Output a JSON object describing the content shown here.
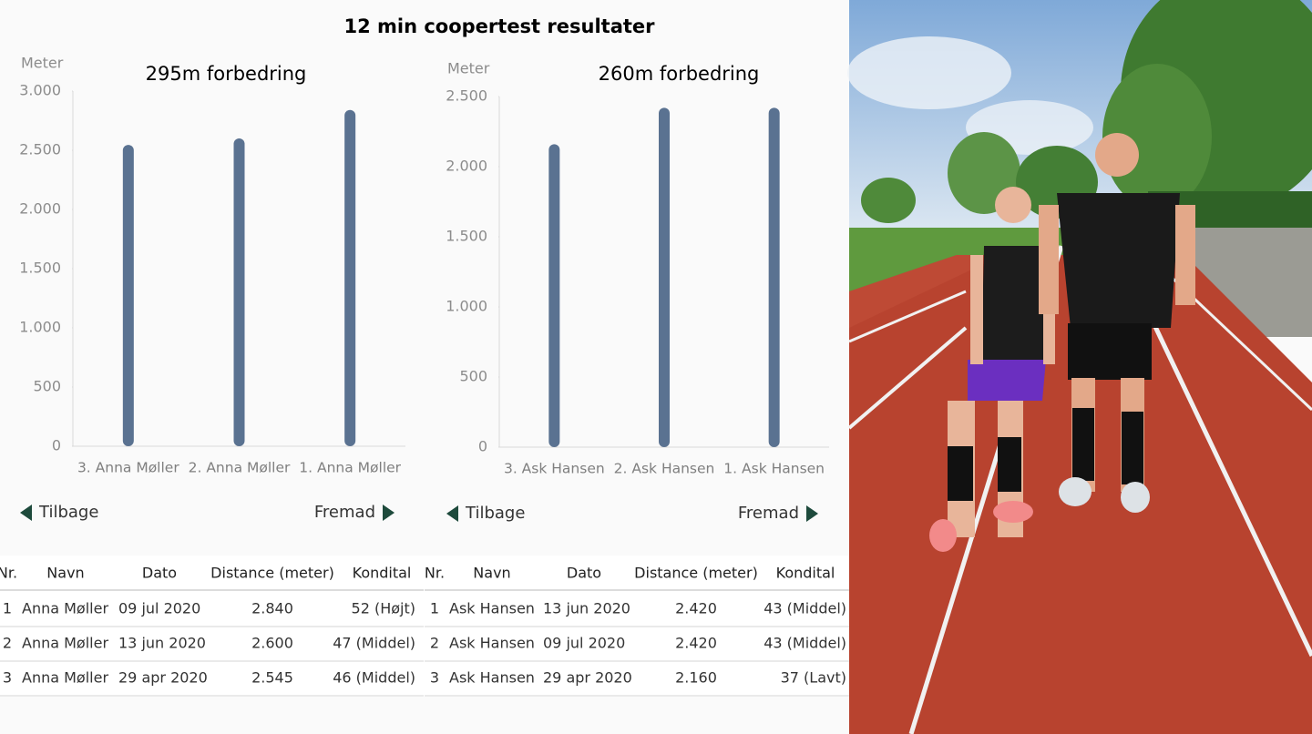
{
  "title": "12 min coopertest resultater",
  "chart_data": [
    {
      "type": "bar",
      "title": "295m forbedring",
      "y_label": "Meter",
      "categories": [
        "3. Anna Møller",
        "2. Anna Møller",
        "1. Anna Møller"
      ],
      "values": [
        2545,
        2600,
        2840
      ],
      "color": "#5a7291",
      "ylim": [
        0,
        3000
      ],
      "yticks": [
        0,
        500,
        {
          "value": 1000,
          "label": "1.000"
        },
        {
          "value": 1500,
          "label": "1.500"
        },
        {
          "value": 2000,
          "label": "2.000"
        },
        {
          "value": 2500,
          "label": "2.500"
        },
        {
          "value": 3000,
          "label": "3.000"
        }
      ]
    },
    {
      "type": "bar",
      "title": "260m forbedring",
      "y_label": "Meter",
      "categories": [
        "3. Ask Hansen",
        "2. Ask Hansen",
        "1. Ask Hansen"
      ],
      "values": [
        2160,
        2420,
        2420
      ],
      "color": "#5a7291",
      "ylim": [
        0,
        2500
      ],
      "yticks": [
        0,
        500,
        {
          "value": 1000,
          "label": "1.000"
        },
        {
          "value": 1500,
          "label": "1.500"
        },
        {
          "value": 2000,
          "label": "2.000"
        },
        {
          "value": 2500,
          "label": "2.500"
        }
      ]
    }
  ],
  "nav": {
    "back": "Tilbage",
    "forward": "Fremad"
  },
  "tables": [
    {
      "columns": [
        "Nr.",
        "Navn",
        "Dato",
        "Distance (meter)",
        "Kondital"
      ],
      "rows": [
        [
          "1",
          "Anna Møller",
          "09 jul 2020",
          "2.840",
          "52 (Højt)"
        ],
        [
          "2",
          "Anna Møller",
          "13 jun 2020",
          "2.600",
          "47 (Middel)"
        ],
        [
          "3",
          "Anna Møller",
          "29 apr 2020",
          "2.545",
          "46 (Middel)"
        ]
      ]
    },
    {
      "columns": [
        "Nr.",
        "Navn",
        "Dato",
        "Distance (meter)",
        "Kondital"
      ],
      "rows": [
        [
          "1",
          "Ask Hansen",
          "13 jun 2020",
          "2.420",
          "43 (Middel)"
        ],
        [
          "2",
          "Ask Hansen",
          "09 jul 2020",
          "2.420",
          "43 (Middel)"
        ],
        [
          "3",
          "Ask Hansen",
          "29 apr 2020",
          "2.160",
          "37 (Lavt)"
        ]
      ]
    }
  ]
}
